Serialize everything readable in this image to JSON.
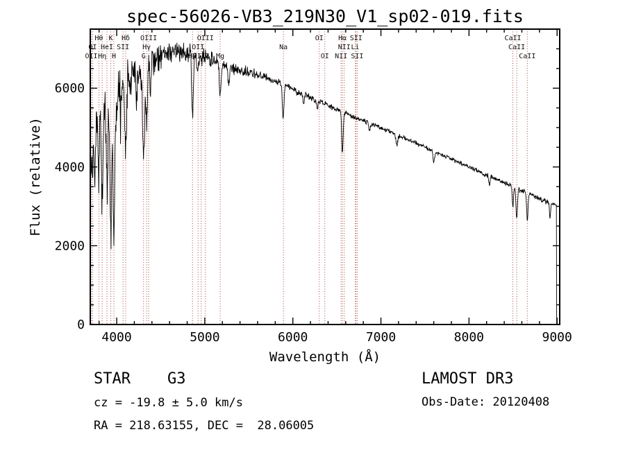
{
  "title": "spec-56026-VB3_219N30_V1_sp02-019.fits",
  "footer": {
    "class_label": "STAR    G3",
    "survey": "LAMOST DR3",
    "cz": "cz = -19.8 ± 5.0 km/s",
    "obs_date": "Obs-Date: 20120408",
    "coords": "RA = 218.63155, DEC =  28.06005"
  },
  "chart_data": {
    "type": "line",
    "title": "spec-56026-VB3_219N30_V1_sp02-019.fits",
    "xlabel": "Wavelength (Å)",
    "ylabel": "Flux (relative)",
    "xlim": [
      3700,
      9030
    ],
    "ylim": [
      0,
      7500
    ],
    "x_ticks": [
      4000,
      5000,
      6000,
      7000,
      8000,
      9000
    ],
    "x_minor_step": 200,
    "y_ticks": [
      0,
      2000,
      4000,
      6000
    ],
    "y_minor_step": 500,
    "grid": false,
    "legend": "none",
    "line_color": "#000000",
    "marker_line_color": "#aa4040",
    "spectral_lines": [
      {
        "label": "Hθ",
        "wavelength": 3798,
        "row": 0
      },
      {
        "label": "K",
        "wavelength": 3933,
        "row": 0
      },
      {
        "label": "Hδ",
        "wavelength": 4102,
        "row": 0
      },
      {
        "label": "OIII",
        "wavelength": 4363,
        "row": 0
      },
      {
        "label": "OIII",
        "wavelength": 5007,
        "row": 0
      },
      {
        "label": "OI",
        "wavelength": 6300,
        "row": 0
      },
      {
        "label": "Hα",
        "wavelength": 6563,
        "row": 0
      },
      {
        "label": "SII",
        "wavelength": 6718,
        "row": 0
      },
      {
        "label": "CaII",
        "wavelength": 8498,
        "row": 0
      },
      {
        "label": "OI",
        "wavelength": 3727,
        "row": 1
      },
      {
        "label": "HeI",
        "wavelength": 3889,
        "row": 1
      },
      {
        "label": "SII",
        "wavelength": 4072,
        "row": 1
      },
      {
        "label": "Hγ",
        "wavelength": 4340,
        "row": 1
      },
      {
        "label": "OII",
        "wavelength": 4924,
        "row": 1
      },
      {
        "label": "Na",
        "wavelength": 5893,
        "row": 1
      },
      {
        "label": "NII",
        "wavelength": 6584,
        "row": 1
      },
      {
        "label": "Li",
        "wavelength": 6708,
        "row": 1
      },
      {
        "label": "CaII",
        "wavelength": 8542,
        "row": 1
      },
      {
        "label": "OII",
        "wavelength": 3712,
        "row": 2
      },
      {
        "label": "Hη",
        "wavelength": 3835,
        "row": 2
      },
      {
        "label": "H",
        "wavelength": 3968,
        "row": 2
      },
      {
        "label": "G",
        "wavelength": 4305,
        "row": 2
      },
      {
        "label": "Hβ",
        "wavelength": 4861,
        "row": 2
      },
      {
        "label": "OIII",
        "wavelength": 4959,
        "row": 2
      },
      {
        "label": "Mg",
        "wavelength": 5175,
        "row": 2
      },
      {
        "label": "OI",
        "wavelength": 6363,
        "row": 2
      },
      {
        "label": "NII",
        "wavelength": 6548,
        "row": 2
      },
      {
        "label": "SII",
        "wavelength": 6731,
        "row": 2
      },
      {
        "label": "CaII",
        "wavelength": 8662,
        "row": 2
      }
    ],
    "continuum_points": [
      [
        3700,
        4300
      ],
      [
        3720,
        4650
      ],
      [
        3745,
        4850
      ],
      [
        3770,
        5000
      ],
      [
        3800,
        5150
      ],
      [
        3840,
        5250
      ],
      [
        3880,
        5350
      ],
      [
        3930,
        5400
      ],
      [
        3970,
        5500
      ],
      [
        4000,
        5900
      ],
      [
        4060,
        6080
      ],
      [
        4120,
        6250
      ],
      [
        4200,
        6450
      ],
      [
        4300,
        6550
      ],
      [
        4400,
        6700
      ],
      [
        4500,
        6800
      ],
      [
        4600,
        6860
      ],
      [
        4700,
        6880
      ],
      [
        4800,
        6860
      ],
      [
        4900,
        6810
      ],
      [
        5000,
        6800
      ],
      [
        5100,
        6750
      ],
      [
        5200,
        6600
      ],
      [
        5300,
        6510
      ],
      [
        5400,
        6460
      ],
      [
        5500,
        6410
      ],
      [
        5600,
        6350
      ],
      [
        5700,
        6280
      ],
      [
        5800,
        6180
      ],
      [
        5900,
        6080
      ],
      [
        6000,
        5960
      ],
      [
        6100,
        5860
      ],
      [
        6200,
        5760
      ],
      [
        6300,
        5660
      ],
      [
        6400,
        5560
      ],
      [
        6500,
        5460
      ],
      [
        6600,
        5360
      ],
      [
        6700,
        5260
      ],
      [
        6800,
        5180
      ],
      [
        6900,
        5090
      ],
      [
        7000,
        5000
      ],
      [
        7100,
        4900
      ],
      [
        7200,
        4800
      ],
      [
        7300,
        4700
      ],
      [
        7400,
        4600
      ],
      [
        7500,
        4500
      ],
      [
        7600,
        4400
      ],
      [
        7700,
        4300
      ],
      [
        7800,
        4200
      ],
      [
        7900,
        4100
      ],
      [
        8000,
        4000
      ],
      [
        8100,
        3900
      ],
      [
        8200,
        3800
      ],
      [
        8300,
        3700
      ],
      [
        8400,
        3600
      ],
      [
        8500,
        3500
      ],
      [
        8600,
        3400
      ],
      [
        8700,
        3300
      ],
      [
        8800,
        3200
      ],
      [
        8900,
        3100
      ],
      [
        9000,
        3010
      ]
    ],
    "absorption_features": [
      [
        3727,
        900,
        6
      ],
      [
        3750,
        1100,
        7
      ],
      [
        3798,
        1400,
        7
      ],
      [
        3835,
        1800,
        8
      ],
      [
        3889,
        1700,
        8
      ],
      [
        3933,
        3000,
        9
      ],
      [
        3968,
        3300,
        10
      ],
      [
        4045,
        700,
        6
      ],
      [
        4102,
        2100,
        10
      ],
      [
        4227,
        800,
        7
      ],
      [
        4305,
        2300,
        11
      ],
      [
        4340,
        1600,
        9
      ],
      [
        4383,
        800,
        7
      ],
      [
        4861,
        1500,
        9
      ],
      [
        4920,
        300,
        8
      ],
      [
        5175,
        800,
        11
      ],
      [
        5270,
        450,
        9
      ],
      [
        5890,
        850,
        9
      ],
      [
        6122,
        280,
        7
      ],
      [
        6280,
        220,
        7
      ],
      [
        6563,
        1050,
        8
      ],
      [
        6870,
        200,
        8
      ],
      [
        7180,
        250,
        10
      ],
      [
        7600,
        250,
        9
      ],
      [
        8230,
        200,
        8
      ],
      [
        8498,
        500,
        7
      ],
      [
        8542,
        780,
        8
      ],
      [
        8662,
        680,
        8
      ],
      [
        8920,
        420,
        6
      ]
    ],
    "noise_profile": [
      [
        3700,
        520
      ],
      [
        3800,
        500
      ],
      [
        3900,
        470
      ],
      [
        4000,
        430
      ],
      [
        4100,
        390
      ],
      [
        4200,
        340
      ],
      [
        4300,
        300
      ],
      [
        4400,
        260
      ],
      [
        4500,
        220
      ],
      [
        4700,
        175
      ],
      [
        4900,
        140
      ],
      [
        5100,
        110
      ],
      [
        5300,
        92
      ],
      [
        5600,
        72
      ],
      [
        6000,
        55
      ],
      [
        6500,
        45
      ],
      [
        7000,
        38
      ],
      [
        7500,
        34
      ],
      [
        8000,
        34
      ],
      [
        8500,
        38
      ],
      [
        9000,
        45
      ]
    ],
    "noise_seed": 20120408,
    "sample_step": 4,
    "data_start": 3702,
    "data_end": 8993
  }
}
